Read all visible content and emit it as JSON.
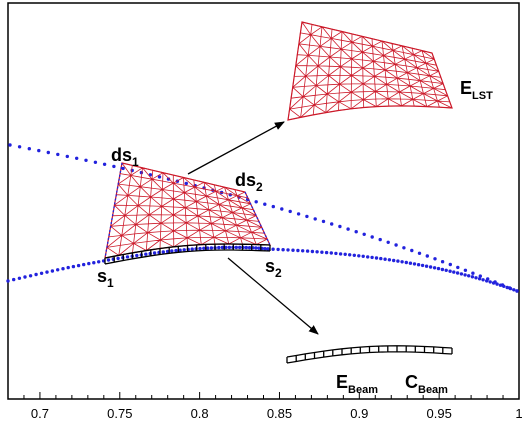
{
  "chart_data": {
    "type": "scatter",
    "title": "",
    "xlabel": "",
    "ylabel": "",
    "xlim": [
      0.68,
      1.0
    ],
    "x_ticks": [
      "0.7",
      "0.75",
      "0.8",
      "0.85",
      "0.9",
      "0.95",
      "1"
    ],
    "grid": false,
    "annotations": [
      {
        "base": "ds",
        "sub": "1"
      },
      {
        "base": "ds",
        "sub": "2"
      },
      {
        "base": "s",
        "sub": "1"
      },
      {
        "base": "s",
        "sub": "2"
      },
      {
        "base": "E",
        "sub": "LST"
      },
      {
        "base": "E",
        "sub": "Beam"
      },
      {
        "base": "C",
        "sub": "Beam"
      }
    ]
  },
  "colors": {
    "mesh": "#cc1a2a",
    "dotted_curve": "#2222dd",
    "beam": "#000000",
    "axis": "#000000"
  }
}
